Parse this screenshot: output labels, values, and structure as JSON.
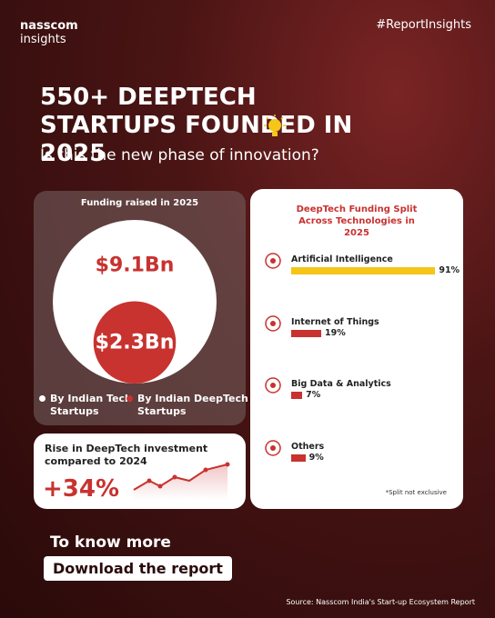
{
  "header": {
    "brand": "nasscom",
    "brand_sub": "insights",
    "hashtag": "#ReportInsights"
  },
  "headline": {
    "title": "550+ DEEPTECH STARTUPS FOUNDED IN 2025",
    "subtitle": "Is this the new phase of innovation?"
  },
  "chart_data": [
    {
      "type": "bubble",
      "title": "Funding raised in 2025",
      "categories": [
        "By Indian Tech Startups",
        "By Indian DeepTech Startups"
      ],
      "values": [
        9.1,
        2.3
      ],
      "value_labels": [
        "$9.1Bn",
        "$2.3Bn"
      ],
      "colors": [
        "#ffffff",
        "#c8322f"
      ]
    },
    {
      "type": "bar",
      "orientation": "horizontal",
      "title": "DeepTech Funding Split Across Technologies in 2025",
      "categories": [
        "Artificial Intelligence",
        "Internet of Things",
        "Big Data & Analytics",
        "Others"
      ],
      "values": [
        91,
        19,
        7,
        9
      ],
      "value_labels": [
        "91%",
        "19%",
        "7%",
        "9%"
      ],
      "colors": [
        "#f5c518",
        "#c8322f",
        "#c8322f",
        "#c8322f"
      ],
      "xlim": [
        0,
        100
      ],
      "note": "*Split not exclusive"
    }
  ],
  "rise": {
    "text": "Rise in DeepTech investment compared to 2024",
    "value": "+34%"
  },
  "cta": {
    "intro": "To know more",
    "button": "Download the report"
  },
  "source": "Source: Nasscom India's Start-up Ecosystem Report"
}
